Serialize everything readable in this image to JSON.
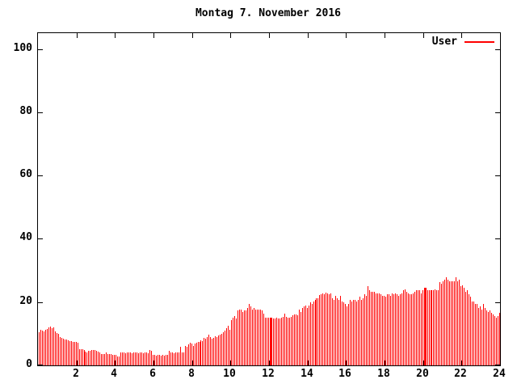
{
  "title": "Montag 7. November 2016",
  "legend": {
    "label": "User",
    "color": "#ff0000"
  },
  "colors": {
    "bar": "#ff0000",
    "axis": "#000000",
    "background": "#ffffff"
  },
  "axes": {
    "x_tick_values": [
      2,
      4,
      6,
      8,
      10,
      12,
      14,
      16,
      18,
      20,
      22,
      24
    ],
    "y_tick_values": [
      0,
      20,
      40,
      60,
      80,
      100
    ],
    "x_range": [
      0,
      24
    ],
    "y_range": [
      0,
      105
    ]
  },
  "chart_data": {
    "type": "bar",
    "title": "Montag 7. November 2016",
    "series_name": "User",
    "x_unit": "hour of day",
    "interval_minutes": 5,
    "xlim": [
      0,
      24
    ],
    "ylim": [
      0,
      105
    ],
    "grid": false,
    "legend_position": "top-right-inside",
    "bar_color": "#ff0000",
    "values": [
      10.5,
      11.2,
      11.0,
      10.7,
      11.2,
      11.5,
      12.0,
      12.3,
      11.8,
      12.0,
      10.7,
      10.2,
      10.0,
      9.0,
      8.7,
      8.5,
      8.2,
      8.2,
      7.9,
      7.7,
      7.7,
      7.5,
      7.3,
      7.3,
      7.1,
      5.2,
      5.1,
      5.1,
      4.8,
      4.4,
      4.0,
      4.6,
      4.6,
      4.8,
      4.8,
      4.8,
      4.6,
      4.4,
      4.0,
      3.7,
      3.6,
      3.7,
      4.0,
      3.7,
      3.6,
      3.5,
      3.4,
      3.3,
      3.2,
      2.8,
      2.9,
      4.1,
      4.0,
      4.1,
      3.9,
      4.0,
      4.1,
      4.0,
      3.9,
      4.0,
      4.1,
      4.0,
      3.9,
      4.0,
      4.0,
      3.9,
      4.0,
      4.1,
      3.9,
      4.9,
      4.5,
      3.4,
      3.2,
      3.1,
      3.2,
      3.3,
      3.1,
      3.2,
      3.1,
      3.3,
      3.2,
      4.5,
      4.0,
      4.1,
      3.9,
      4.0,
      4.1,
      4.0,
      5.9,
      4.1,
      4.0,
      6.2,
      5.8,
      6.7,
      7.2,
      6.9,
      6.2,
      6.9,
      7.2,
      7.5,
      7.3,
      7.9,
      7.7,
      8.7,
      8.4,
      9.0,
      9.7,
      8.9,
      8.4,
      8.6,
      9.2,
      9.0,
      9.5,
      9.7,
      10.0,
      10.5,
      11.0,
      11.8,
      12.6,
      11.3,
      14.3,
      15.2,
      15.6,
      14.8,
      17.4,
      17.5,
      17.5,
      16.9,
      17.4,
      17.4,
      18.2,
      19.4,
      18.6,
      17.5,
      18.2,
      17.7,
      17.7,
      17.7,
      17.7,
      17.4,
      16.4,
      15.2,
      15.1,
      15.0,
      15.0,
      15.1,
      14.7,
      14.8,
      15.0,
      14.9,
      14.7,
      15.2,
      15.3,
      16.4,
      15.4,
      15.2,
      15.2,
      15.4,
      15.8,
      16.0,
      16.2,
      15.9,
      17.7,
      16.9,
      18.2,
      18.6,
      19.0,
      18.2,
      19.0,
      19.9,
      19.4,
      20.3,
      20.7,
      21.2,
      21.2,
      22.3,
      22.4,
      22.8,
      22.4,
      22.9,
      22.8,
      22.4,
      22.8,
      21.1,
      20.7,
      21.9,
      21.1,
      20.7,
      21.9,
      20.3,
      19.9,
      19.4,
      18.6,
      19.4,
      20.7,
      20.3,
      20.7,
      20.7,
      20.3,
      20.7,
      21.6,
      20.7,
      21.1,
      22.4,
      21.9,
      25.0,
      23.7,
      23.3,
      23.3,
      23.3,
      22.8,
      22.8,
      22.8,
      22.4,
      21.9,
      21.9,
      21.6,
      22.4,
      22.4,
      21.9,
      22.8,
      22.4,
      22.8,
      22.4,
      21.9,
      22.4,
      22.8,
      23.7,
      24.1,
      23.3,
      22.8,
      22.4,
      22.4,
      22.8,
      23.3,
      23.7,
      23.7,
      23.7,
      22.8,
      23.7,
      24.5,
      24.4,
      23.7,
      23.7,
      23.7,
      23.7,
      23.7,
      24.1,
      23.7,
      23.7,
      26.2,
      25.8,
      26.6,
      27.1,
      27.9,
      27.1,
      26.6,
      26.6,
      26.6,
      26.6,
      27.9,
      26.6,
      27.1,
      25.0,
      25.4,
      24.5,
      23.3,
      23.7,
      22.4,
      21.6,
      20.3,
      20.3,
      19.4,
      19.4,
      18.2,
      18.6,
      17.7,
      19.4,
      18.2,
      17.3,
      16.9,
      17.3,
      16.5,
      16.0,
      15.6,
      15.2,
      15.6,
      16.5
    ]
  }
}
